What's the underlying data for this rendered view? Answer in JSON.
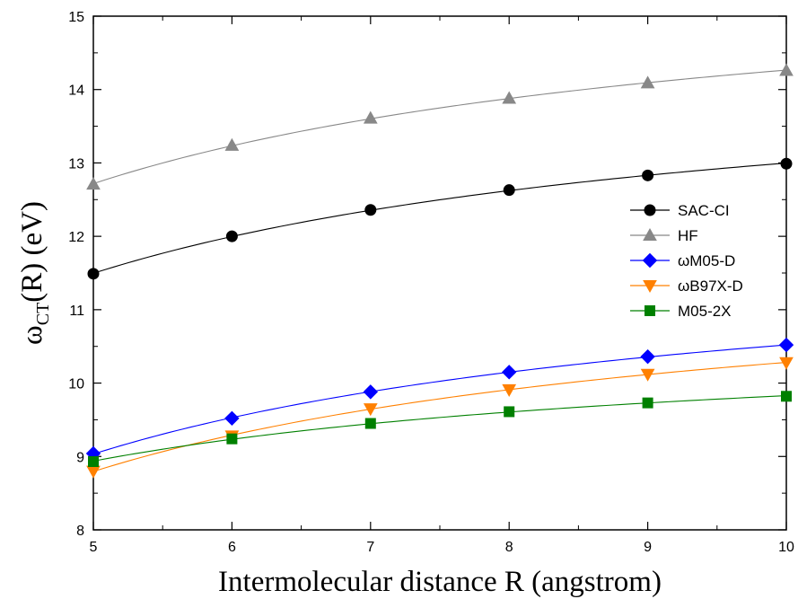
{
  "chart_data": {
    "type": "line",
    "xlabel": "Intermolecular distance R (angstrom)",
    "ylabel": {
      "main": "ω",
      "sub": "CT",
      "rest": "(R) (eV)"
    },
    "xlim": [
      5,
      10
    ],
    "ylim": [
      8,
      15
    ],
    "xticks": [
      5,
      6,
      7,
      8,
      9,
      10
    ],
    "yticks": [
      8,
      9,
      10,
      11,
      12,
      13,
      14,
      15
    ],
    "grid": false,
    "legend_position": "right",
    "x": [
      5,
      6,
      7,
      8,
      9,
      10
    ],
    "series": [
      {
        "name": "SAC-CI",
        "color": "#000000",
        "marker": "circle",
        "values": [
          11.49,
          12.0,
          12.36,
          12.63,
          12.83,
          12.99
        ]
      },
      {
        "name": "HF",
        "color": "#888888",
        "marker": "triangle-up",
        "values": [
          12.71,
          13.24,
          13.61,
          13.88,
          14.09,
          14.26
        ]
      },
      {
        "name": "ωM05-D",
        "color": "#0000ff",
        "marker": "diamond",
        "values": [
          9.04,
          9.52,
          9.88,
          10.15,
          10.36,
          10.52
        ]
      },
      {
        "name": "ωB97X-D",
        "color": "#ff8000",
        "marker": "triangle-down",
        "values": [
          8.8,
          9.28,
          9.65,
          9.91,
          10.12,
          10.28
        ]
      },
      {
        "name": "M05-2X",
        "color": "#008000",
        "marker": "square",
        "values": [
          8.93,
          9.24,
          9.45,
          9.61,
          9.73,
          9.82
        ]
      }
    ]
  }
}
